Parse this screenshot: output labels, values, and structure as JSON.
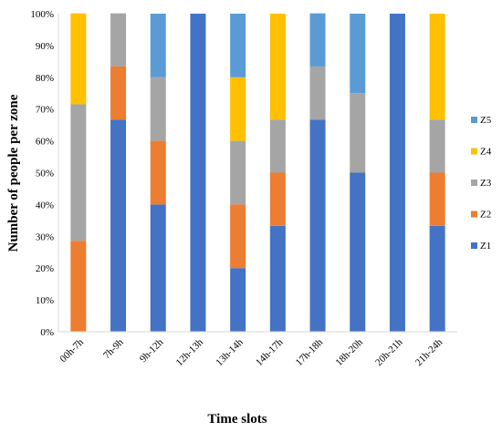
{
  "chart_data": {
    "type": "bar",
    "stacked": true,
    "percent": true,
    "xlabel": "Time slots",
    "ylabel": "Number of people per zone",
    "ylim": [
      0,
      100
    ],
    "yticks": [
      0,
      10,
      20,
      30,
      40,
      50,
      60,
      70,
      80,
      90,
      100
    ],
    "ytick_labels": [
      "0%",
      "10%",
      "20%",
      "30%",
      "40%",
      "50%",
      "60%",
      "70%",
      "80%",
      "90%",
      "100%"
    ],
    "grid": false,
    "legend_position": "right",
    "categories": [
      "00h-7h",
      "7h-9h",
      "9h-12h",
      "12h-13h",
      "13h-14h",
      "14h-17h",
      "17h-18h",
      "18h-20h",
      "20h-21h",
      "21h-24h"
    ],
    "series": [
      {
        "name": "Z1",
        "color": "#4472C4",
        "values": [
          0,
          66.7,
          40,
          100,
          20,
          33.3,
          66.7,
          50,
          100,
          33.3
        ]
      },
      {
        "name": "Z2",
        "color": "#ED7D31",
        "values": [
          28.6,
          16.7,
          20,
          0,
          20,
          16.7,
          0,
          0,
          0,
          16.7
        ]
      },
      {
        "name": "Z3",
        "color": "#A5A5A5",
        "values": [
          42.9,
          16.7,
          20,
          0,
          20,
          16.7,
          16.7,
          25,
          0,
          16.7
        ]
      },
      {
        "name": "Z4",
        "color": "#FFC000",
        "values": [
          28.6,
          0,
          0,
          0,
          20,
          33.3,
          0,
          0,
          0,
          33.3
        ]
      },
      {
        "name": "Z5",
        "color": "#5B9BD5",
        "values": [
          0,
          0,
          20,
          0,
          20,
          0,
          16.7,
          25,
          0,
          0
        ]
      }
    ],
    "legend_order": [
      "Z5",
      "Z4",
      "Z3",
      "Z2",
      "Z1"
    ]
  }
}
